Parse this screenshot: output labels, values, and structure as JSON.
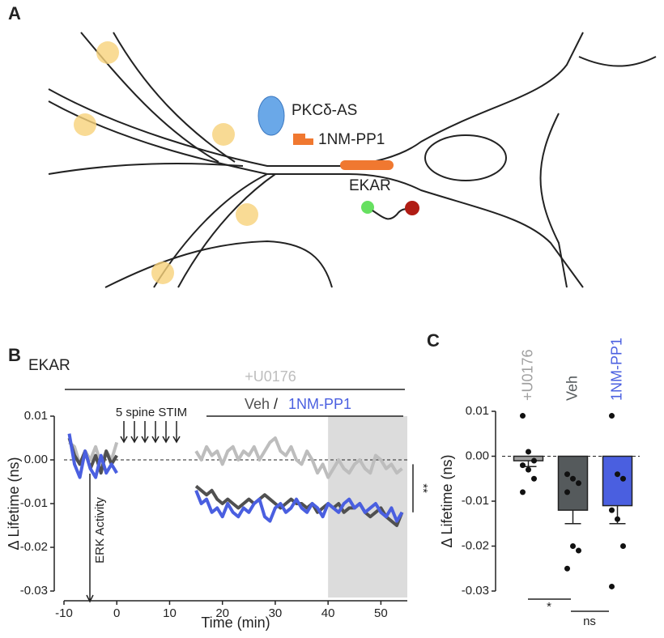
{
  "figure_labels": [
    "A",
    "B",
    "C"
  ],
  "diagram": {
    "labels": [
      "PKCδ-AS",
      "1NM-PP1",
      "EKAR"
    ]
  },
  "chart_data": [
    {
      "type": "line",
      "title": "EKAR",
      "xlabel": "Time (min)",
      "ylabel": "Δ Lifetime (ns)",
      "xlim": [
        -10,
        55
      ],
      "xticks": [
        -10,
        0,
        10,
        20,
        30,
        40,
        50
      ],
      "ylim": [
        -0.03,
        0.01
      ],
      "yticks": [
        0.01,
        {
          "value": 0,
          "label": "0.00"
        },
        -0.01,
        -0.02,
        -0.03
      ],
      "highlight": [
        40,
        55
      ],
      "annotations": [
        "+U0176",
        "5 spine STIM",
        "Veh",
        "/",
        "ERK Activity",
        "**"
      ],
      "x": [
        -9,
        -8,
        -7,
        -6,
        -5,
        -4,
        -3,
        -2,
        -1,
        0,
        1,
        2,
        3,
        4,
        5,
        6,
        7,
        8,
        9,
        10,
        11,
        12,
        13,
        14,
        15,
        16,
        17,
        18,
        19,
        20,
        21,
        22,
        23,
        24,
        25,
        26,
        27,
        28,
        29,
        30,
        31,
        32,
        33,
        34,
        35,
        36,
        37,
        38,
        39,
        40,
        41,
        42,
        43,
        44,
        45,
        46,
        47,
        48,
        49,
        50,
        51,
        52,
        53,
        54
      ],
      "series": [
        {
          "name": "+U0176",
          "color": "#bdbdbd",
          "values": [
            0.004,
            0.003,
            -0.001,
            0.002,
            0.0,
            0.003,
            -0.001,
            0.002,
            0.0,
            0.004,
            null,
            null,
            null,
            null,
            null,
            null,
            null,
            null,
            null,
            null,
            null,
            null,
            null,
            null,
            0.002,
            0.0,
            0.003,
            0.001,
            0.002,
            -0.001,
            0.002,
            0.003,
            0.0,
            0.002,
            0.001,
            0.003,
            0.0,
            0.002,
            0.004,
            0.005,
            0.002,
            0.001,
            0.003,
            0.0,
            -0.001,
            0.002,
            0.0,
            -0.003,
            -0.001,
            -0.004,
            -0.002,
            0.0,
            -0.002,
            -0.003,
            -0.001,
            0.0,
            -0.002,
            -0.003,
            0.001,
            0.0,
            -0.002,
            -0.001,
            -0.003,
            -0.002
          ]
        },
        {
          "name": "Veh",
          "color": "#505050",
          "values": [
            0.005,
            0.001,
            -0.001,
            0.002,
            -0.002,
            0.001,
            -0.003,
            0.002,
            -0.001,
            0.001,
            null,
            null,
            null,
            null,
            null,
            null,
            null,
            null,
            null,
            null,
            null,
            null,
            null,
            null,
            -0.006,
            -0.007,
            -0.008,
            -0.007,
            -0.009,
            -0.01,
            -0.009,
            -0.01,
            -0.011,
            -0.01,
            -0.009,
            -0.01,
            -0.009,
            -0.008,
            -0.009,
            -0.01,
            -0.011,
            -0.01,
            -0.009,
            -0.01,
            -0.01,
            -0.011,
            -0.01,
            -0.012,
            -0.011,
            -0.01,
            -0.011,
            -0.01,
            -0.012,
            -0.011,
            -0.011,
            -0.01,
            -0.012,
            -0.013,
            -0.012,
            -0.011,
            -0.013,
            -0.014,
            -0.015,
            -0.012
          ]
        },
        {
          "name": "1NM-PP1",
          "color": "#4a5fe0",
          "values": [
            0.006,
            -0.001,
            -0.004,
            0.002,
            -0.002,
            -0.004,
            0.001,
            -0.003,
            -0.001,
            -0.003,
            null,
            null,
            null,
            null,
            null,
            null,
            null,
            null,
            null,
            null,
            null,
            null,
            null,
            null,
            -0.007,
            -0.01,
            -0.009,
            -0.012,
            -0.011,
            -0.013,
            -0.01,
            -0.012,
            -0.013,
            -0.011,
            -0.012,
            -0.01,
            -0.009,
            -0.013,
            -0.014,
            -0.011,
            -0.01,
            -0.012,
            -0.011,
            -0.009,
            -0.011,
            -0.012,
            -0.01,
            -0.011,
            -0.013,
            -0.01,
            -0.011,
            -0.012,
            -0.01,
            -0.009,
            -0.011,
            -0.01,
            -0.012,
            -0.011,
            -0.01,
            -0.012,
            -0.013,
            -0.011,
            -0.014,
            -0.012
          ]
        }
      ]
    },
    {
      "type": "bar",
      "ylabel": "Δ Lifetime (ns)",
      "ylim": [
        -0.03,
        0.01
      ],
      "yticks": [
        0.01,
        {
          "value": 0,
          "label": "0.00"
        },
        -0.01,
        -0.02,
        -0.03
      ],
      "categories": [
        "+U0176",
        "Veh",
        "1NM-PP1"
      ],
      "colors": [
        "#a0a0a0",
        "#555a5c",
        "#4a5fe0"
      ],
      "values": [
        -0.001,
        -0.012,
        -0.011
      ],
      "errors": [
        0.0013,
        0.003,
        0.004
      ],
      "points": [
        [
          0.009,
          0.001,
          -0.001,
          -0.002,
          -0.003,
          -0.005,
          -0.008
        ],
        [
          -0.004,
          -0.005,
          -0.006,
          -0.008,
          -0.02,
          -0.021,
          -0.025
        ],
        [
          0.009,
          -0.004,
          -0.005,
          -0.012,
          -0.014,
          -0.02,
          -0.029
        ]
      ],
      "significance": [
        "*",
        "ns"
      ]
    }
  ]
}
